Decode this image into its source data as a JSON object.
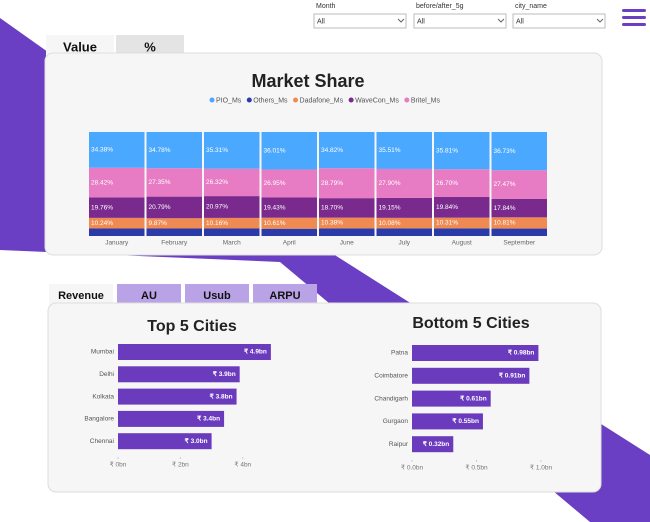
{
  "filters": [
    {
      "label": "Month",
      "value": "All"
    },
    {
      "label": "before/after_5g",
      "value": "All"
    },
    {
      "label": "city_name",
      "value": "All"
    }
  ],
  "top_tabs": [
    "Value",
    "%"
  ],
  "bottom_tabs": [
    "Revenue",
    "AU",
    "Usub",
    "ARPU"
  ],
  "chart_data": [
    {
      "type": "stacked",
      "title": "Market Share",
      "categories": [
        "January",
        "February",
        "March",
        "April",
        "June",
        "July",
        "August",
        "September"
      ],
      "ylim": [
        0,
        100
      ],
      "series": [
        {
          "name": "Others_Ms",
          "color": "#2a3aa8",
          "values": [
            7.2,
            7.21,
            7.24,
            7.0,
            7.31,
            7.36,
            7.34,
            7.15
          ]
        },
        {
          "name": "Dadafone_Ms",
          "color": "#ee8a52",
          "values": [
            10.24,
            9.87,
            10.16,
            10.61,
            10.38,
            10.08,
            10.31,
            10.81
          ],
          "value_labels": [
            "10.24%",
            "9.87%",
            "10.16%",
            "10.61%",
            "10.38%",
            "10.08%",
            "10.31%",
            "10.81%"
          ]
        },
        {
          "name": "WaveCon_Ms",
          "color": "#7a2a8c",
          "values": [
            19.76,
            20.79,
            20.97,
            19.43,
            18.7,
            19.15,
            19.84,
            17.84
          ],
          "value_labels": [
            "19.76%",
            "20.79%",
            "20.97%",
            "19.43%",
            "18.70%",
            "19.15%",
            "19.84%",
            "17.84%"
          ]
        },
        {
          "name": "Britel_Ms",
          "color": "#e77cc4",
          "values": [
            28.42,
            27.35,
            26.32,
            26.95,
            28.79,
            27.9,
            26.7,
            27.47
          ],
          "value_labels": [
            "28.42%",
            "27.35%",
            "26.32%",
            "26.95%",
            "28.79%",
            "27.90%",
            "26.70%",
            "27.47%"
          ]
        },
        {
          "name": "PIO_Ms",
          "color": "#4aa8ff",
          "values": [
            34.38,
            34.78,
            35.31,
            36.01,
            34.82,
            35.51,
            35.81,
            36.73
          ],
          "value_labels": [
            "34.38%",
            "34.78%",
            "35.31%",
            "36.01%",
            "34.82%",
            "35.51%",
            "35.81%",
            "36.73%"
          ]
        }
      ],
      "legend_order": [
        "PIO_Ms",
        "Others_Ms",
        "Dadafone_Ms",
        "WaveCon_Ms",
        "Britel_Ms"
      ]
    },
    {
      "type": "hbar",
      "title": "Top 5 Cities",
      "categories": [
        "Mumbai",
        "Delhi",
        "Kolkata",
        "Bangalore",
        "Chennai"
      ],
      "values": [
        4.9,
        3.9,
        3.8,
        3.4,
        3.0
      ],
      "value_labels": [
        "₹ 4.9bn",
        "₹ 3.9bn",
        "₹ 3.8bn",
        "₹ 3.4bn",
        "₹ 3.0bn"
      ],
      "color": "#6a3bbd",
      "xlim": [
        0,
        5
      ],
      "xticks": [
        {
          "value": 0,
          "label": "₹ 0bn"
        },
        {
          "value": 2,
          "label": "₹ 2bn"
        },
        {
          "value": 4,
          "label": "₹ 4bn"
        }
      ]
    },
    {
      "type": "hbar",
      "title": "Bottom 5 Cities",
      "categories": [
        "Patna",
        "Coimbatore",
        "Chandigarh",
        "Gurgaon",
        "Raipur"
      ],
      "values": [
        0.98,
        0.91,
        0.61,
        0.55,
        0.32
      ],
      "value_labels": [
        "₹ 0.98bn",
        "₹ 0.91bn",
        "₹ 0.61bn",
        "₹ 0.55bn",
        "₹ 0.32bn"
      ],
      "color": "#6a3bbd",
      "xlim": [
        0,
        1.0
      ],
      "xticks": [
        {
          "value": 0,
          "label": "₹ 0.0bn"
        },
        {
          "value": 0.5,
          "label": "₹ 0.5bn"
        },
        {
          "value": 1.0,
          "label": "₹ 1.0bn"
        }
      ]
    }
  ]
}
